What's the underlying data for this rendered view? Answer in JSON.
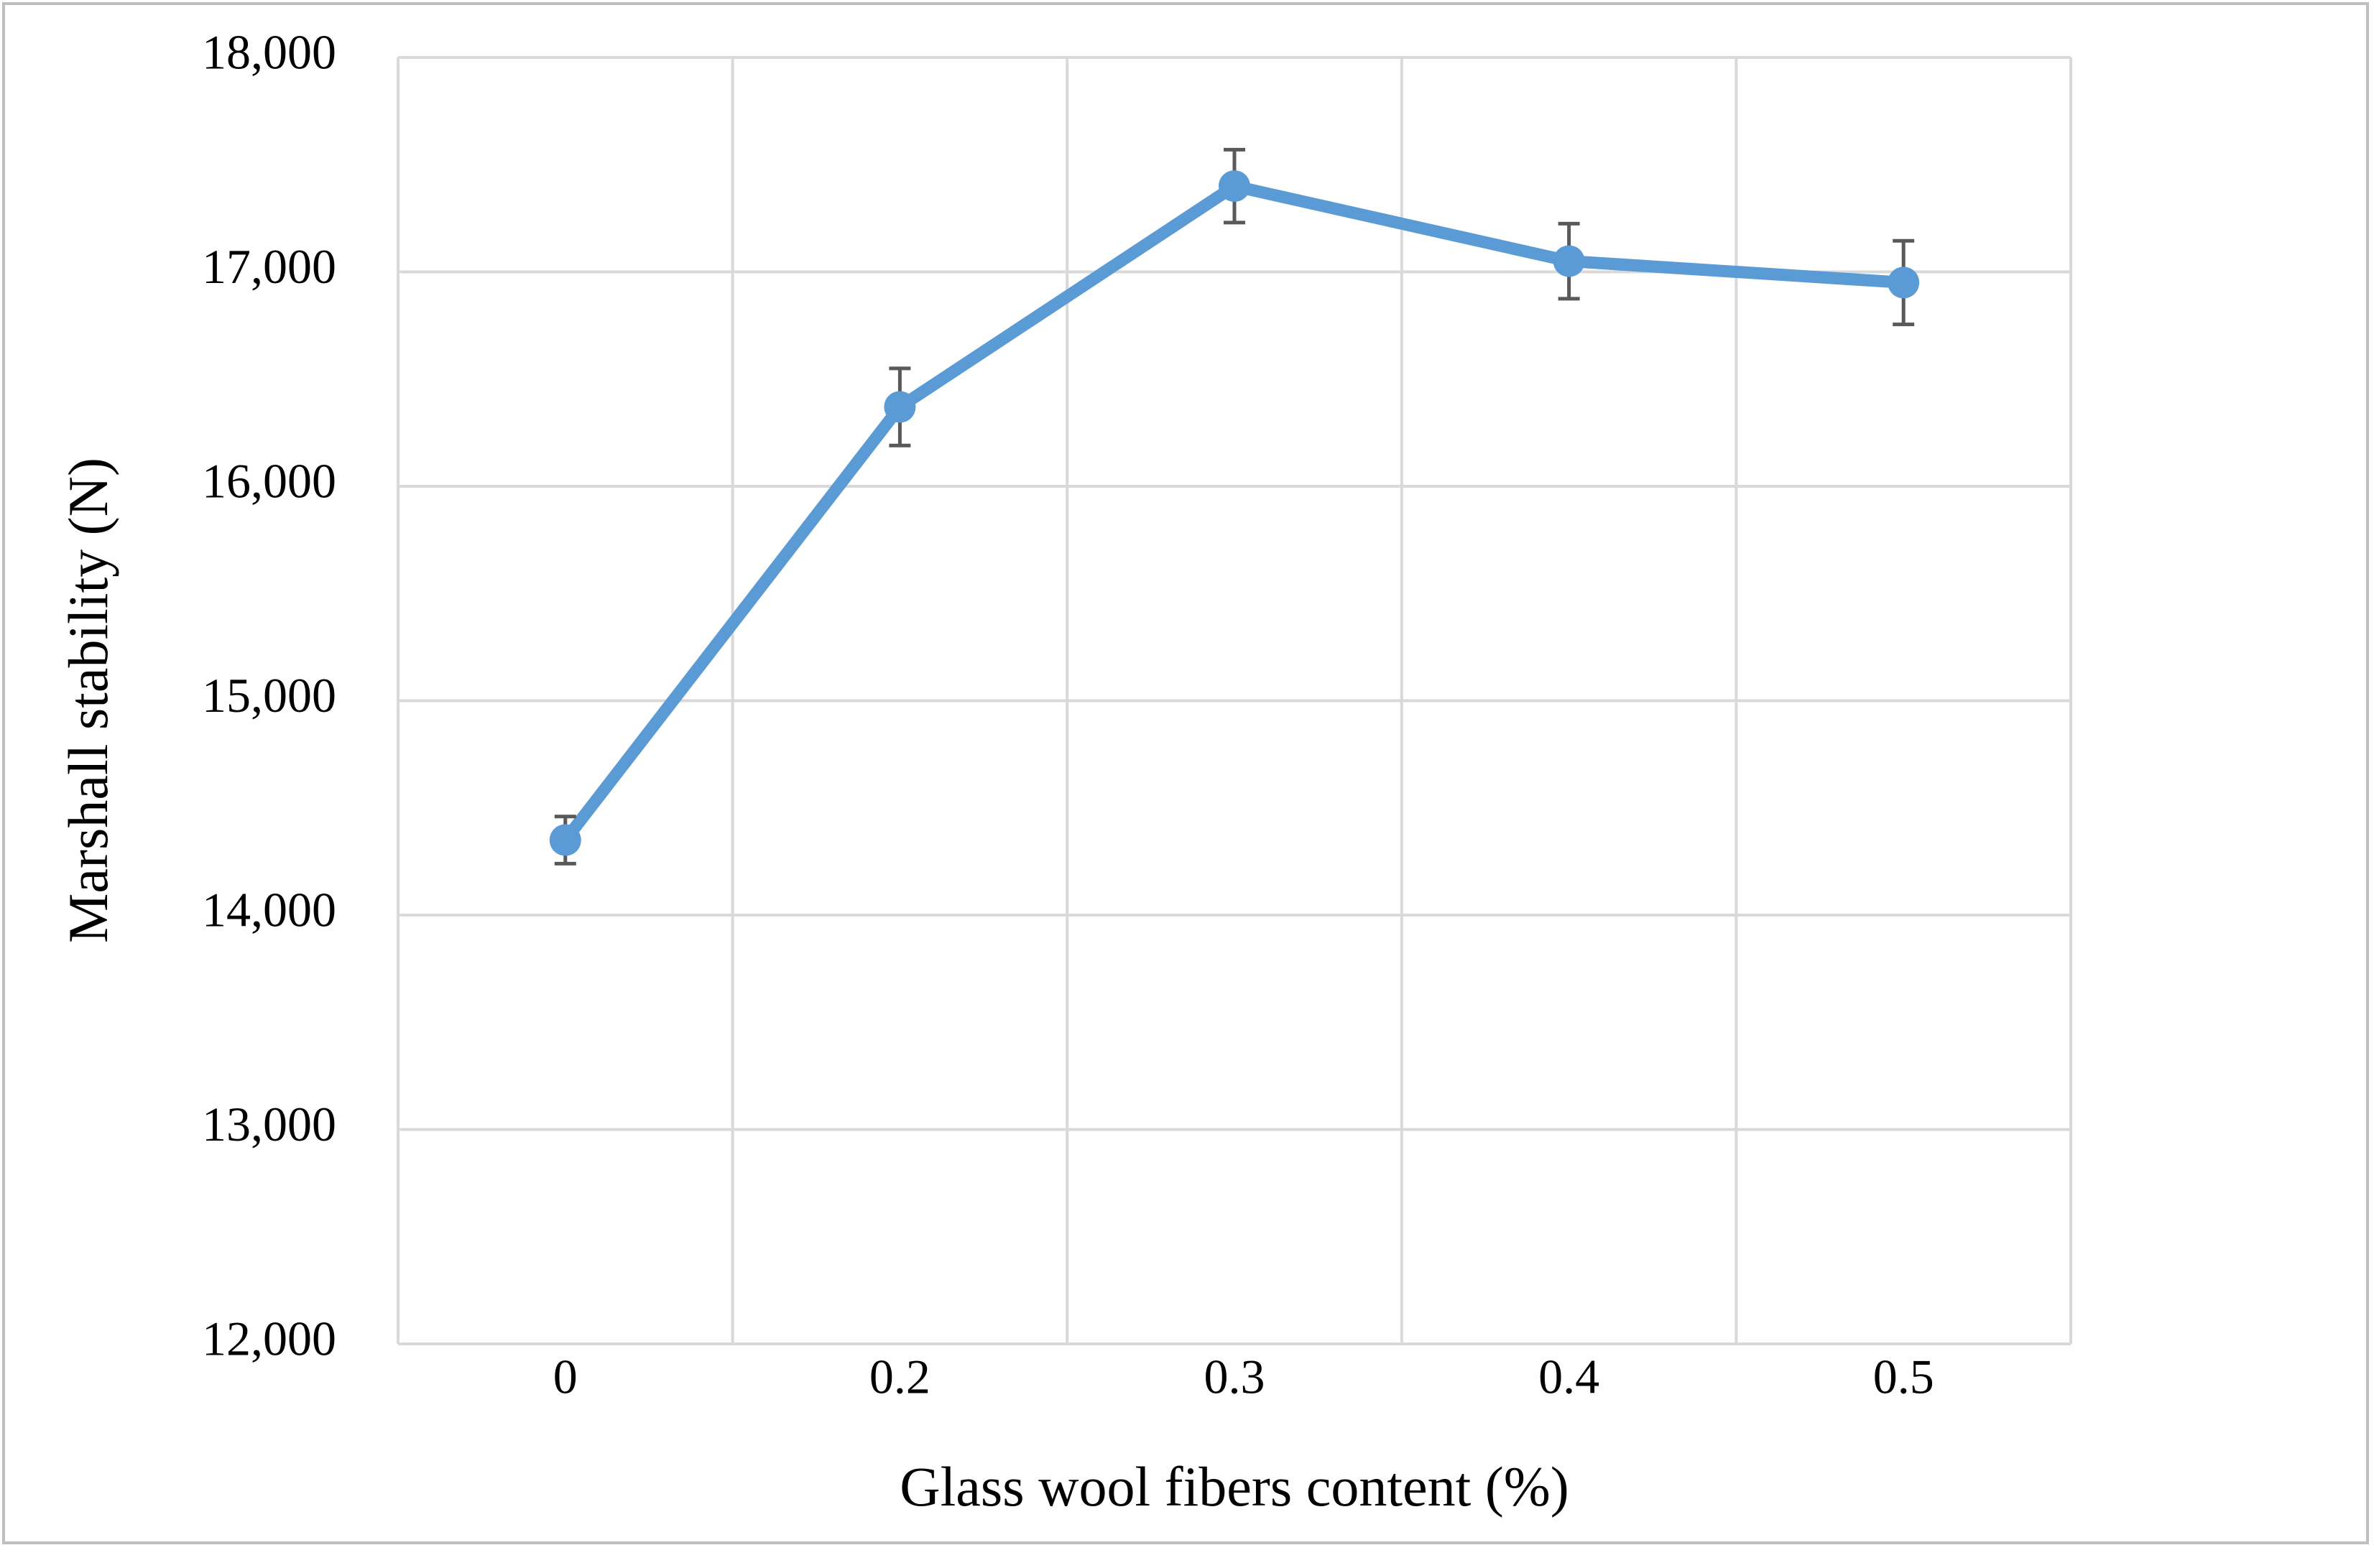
{
  "chart_data": {
    "type": "line",
    "x_label": "Glass wool fibers content (%)",
    "y_label": "Marshall stability (N)",
    "categories": [
      "0",
      "0.2",
      "0.3",
      "0.4",
      "0.5"
    ],
    "values": [
      14350,
      16370,
      17400,
      17050,
      16950
    ],
    "errors": [
      110,
      180,
      170,
      175,
      195
    ],
    "color": "#5b9bd5",
    "error_color": "#595959",
    "ylim": [
      12000,
      18000
    ],
    "yticks": [
      {
        "value": 12000,
        "label": "12,000"
      },
      {
        "value": 13000,
        "label": "13,000"
      },
      {
        "value": 14000,
        "label": "14,000"
      },
      {
        "value": 15000,
        "label": "15,000"
      },
      {
        "value": 16000,
        "label": "16,000"
      },
      {
        "value": 17000,
        "label": "17,000"
      },
      {
        "value": 18000,
        "label": "18,000"
      }
    ],
    "grid": true
  }
}
